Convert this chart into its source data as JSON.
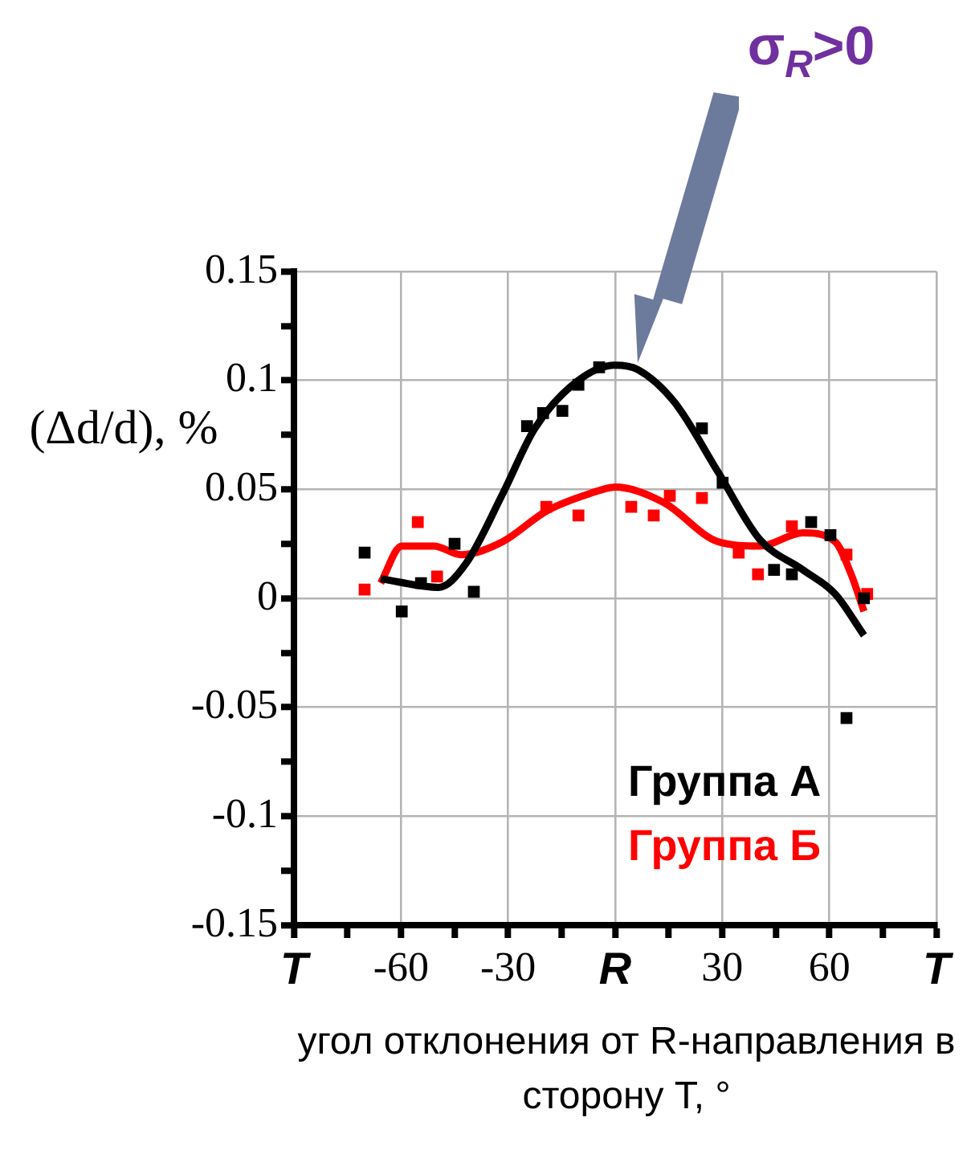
{
  "chart_data": {
    "type": "line",
    "xlabel": "угол отклонения от R-направления в сторону T, °",
    "ylabel": "(Δd/d), %",
    "xlim": [
      -90,
      90
    ],
    "xticks": [
      {
        "value": -90,
        "label": "T"
      },
      {
        "value": -75,
        "label": null
      },
      -60,
      {
        "value": -45,
        "label": null
      },
      -30,
      {
        "value": -15,
        "label": null
      },
      {
        "value": 0,
        "label": "R"
      },
      {
        "value": 15,
        "label": null
      },
      30,
      {
        "value": 45,
        "label": null
      },
      60,
      {
        "value": 75,
        "label": null
      },
      {
        "value": 90,
        "label": "T"
      }
    ],
    "ylim": [
      -0.15,
      0.15
    ],
    "yticks": [
      -0.15,
      {
        "value": -0.125,
        "label": null
      },
      -0.1,
      {
        "value": -0.075,
        "label": null
      },
      -0.05,
      {
        "value": -0.025,
        "label": null
      },
      0,
      {
        "value": 0.025,
        "label": null
      },
      0.05,
      {
        "value": 0.075,
        "label": null
      },
      0.1,
      {
        "value": 0.125,
        "label": null
      },
      0.15
    ],
    "grid": true,
    "legend": "bottom right",
    "marker": "square",
    "annotations": [
      "σ$_{R}$>0"
    ],
    "series": [
      {
        "type": "scatter",
        "name": "Группа А",
        "color": "#000000",
        "x": [
          -70.2,
          -59.8,
          -54.4,
          -45,
          -39.6,
          -24.7,
          -20.2,
          -14.8,
          -10.3,
          -4.5,
          24.3,
          30.1,
          44.5,
          49.5,
          54.9,
          60.3,
          64.8,
          69.7
        ],
        "values": [
          0.021,
          -0.006,
          0.007,
          0.025,
          0.003,
          0.079,
          0.085,
          0.086,
          0.098,
          0.106,
          0.078,
          0.053,
          0.013,
          0.011,
          0.035,
          0.029,
          -0.055,
          0
        ]
      },
      {
        "type": "scatter",
        "name": "Группа Б",
        "color": "#ff0000",
        "x": [
          -70.2,
          -55.3,
          -49.9,
          -19.3,
          -10.3,
          4.5,
          10.8,
          15.3,
          24.3,
          34.6,
          40,
          49.5,
          64.8,
          70.6
        ],
        "values": [
          0.004,
          0.035,
          0.01,
          0.042,
          0.038,
          0.042,
          0.038,
          0.047,
          0.046,
          0.021,
          0.011,
          0.033,
          0.02,
          0.002
        ]
      },
      {
        "marker": "none",
        "color": "#000000",
        "x": [
          -65.7,
          -49.5,
          -41.8,
          -31.5,
          -22.5,
          -10.3,
          0,
          6.3,
          16.6,
          28.8,
          40.5,
          52.6,
          61.6,
          69.7
        ],
        "values": [
          0.009,
          0.005,
          0.016,
          0.048,
          0.078,
          0.1,
          0.107,
          0.105,
          0.09,
          0.058,
          0.027,
          0.013,
          0.002,
          -0.017
        ]
      },
      {
        "marker": "none",
        "color": "#ff0000",
        "x": [
          -65.7,
          -59.8,
          -50.8,
          -43.2,
          -31.5,
          -19.3,
          -7.2,
          0,
          13.5,
          28.8,
          40.5,
          52.6,
          61.6,
          66.1,
          69.7
        ],
        "values": [
          0.007,
          0.024,
          0.024,
          0.02,
          0.026,
          0.04,
          0.048,
          0.051,
          0.044,
          0.026,
          0.024,
          0.03,
          0.026,
          0.011,
          -0.006
        ]
      }
    ]
  }
}
